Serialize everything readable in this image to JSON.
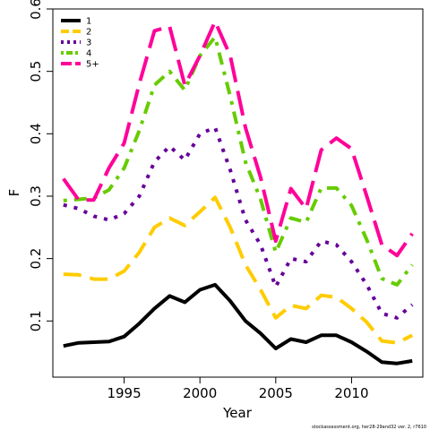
{
  "chart_data": {
    "type": "line",
    "title": "",
    "xlabel": "Year",
    "ylabel": "F",
    "xlim": [
      1990.3,
      2014.7
    ],
    "ylim": [
      0.01,
      0.6
    ],
    "xticks": [
      1995,
      2000,
      2005,
      2010
    ],
    "yticks": [
      0.1,
      0.2,
      0.3,
      0.4,
      0.5,
      0.6
    ],
    "grid": false,
    "legend_position": "top-left",
    "x": [
      1991,
      1992,
      1993,
      1994,
      1995,
      1996,
      1997,
      1998,
      1999,
      2000,
      2001,
      2002,
      2003,
      2004,
      2005,
      2006,
      2007,
      2008,
      2009,
      2010,
      2011,
      2012,
      2013,
      2014
    ],
    "series": [
      {
        "name": "1",
        "color": "#000000",
        "dash": "solid",
        "values": [
          0.06,
          0.065,
          0.066,
          0.067,
          0.075,
          0.096,
          0.12,
          0.14,
          0.13,
          0.15,
          0.158,
          0.132,
          0.1,
          0.08,
          0.056,
          0.071,
          0.066,
          0.077,
          0.077,
          0.066,
          0.051,
          0.034,
          0.032,
          0.036
        ]
      },
      {
        "name": "2",
        "color": "#FFCC00",
        "dash": "long",
        "values": [
          0.175,
          0.174,
          0.167,
          0.167,
          0.18,
          0.21,
          0.25,
          0.265,
          0.253,
          0.275,
          0.298,
          0.25,
          0.19,
          0.15,
          0.105,
          0.125,
          0.12,
          0.141,
          0.138,
          0.12,
          0.098,
          0.068,
          0.065,
          0.077
        ]
      },
      {
        "name": "3",
        "color": "#660099",
        "dash": "dot",
        "values": [
          0.286,
          0.28,
          0.268,
          0.262,
          0.272,
          0.3,
          0.355,
          0.38,
          0.358,
          0.4,
          0.41,
          0.342,
          0.262,
          0.222,
          0.155,
          0.2,
          0.195,
          0.228,
          0.222,
          0.195,
          0.158,
          0.112,
          0.105,
          0.126
        ]
      },
      {
        "name": "4",
        "color": "#66CC00",
        "dash": "dotdash",
        "values": [
          0.293,
          0.295,
          0.297,
          0.31,
          0.345,
          0.405,
          0.478,
          0.5,
          0.47,
          0.525,
          0.555,
          0.46,
          0.355,
          0.295,
          0.21,
          0.265,
          0.258,
          0.313,
          0.313,
          0.285,
          0.23,
          0.168,
          0.158,
          0.19
        ]
      },
      {
        "name": "5+",
        "color": "#FF0099",
        "dash": "longdash",
        "values": [
          0.328,
          0.294,
          0.294,
          0.345,
          0.385,
          0.48,
          0.565,
          0.572,
          0.478,
          0.525,
          0.58,
          0.525,
          0.41,
          0.33,
          0.228,
          0.312,
          0.28,
          0.374,
          0.393,
          0.376,
          0.3,
          0.222,
          0.205,
          0.24
        ]
      }
    ]
  },
  "footnote": "stockassessment.org, her28-29and32 ver. 2, r7610"
}
